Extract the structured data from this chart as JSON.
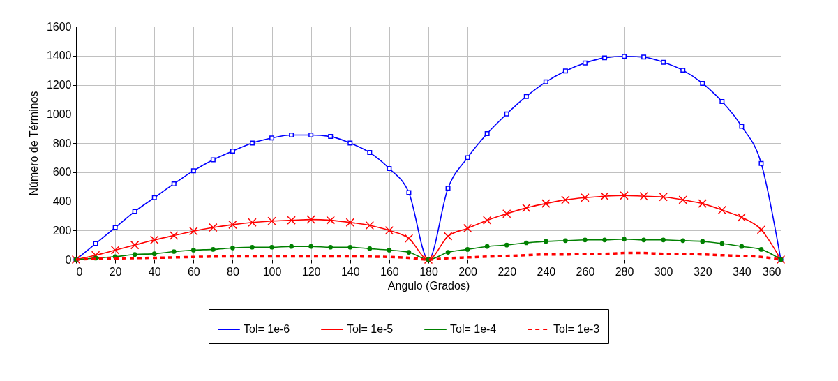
{
  "chart_data": {
    "type": "line",
    "xlabel": "Angulo (Grados)",
    "ylabel": "Número de Términos",
    "x": [
      0,
      10,
      20,
      30,
      40,
      50,
      60,
      70,
      80,
      90,
      100,
      110,
      120,
      130,
      140,
      150,
      160,
      170,
      180,
      190,
      200,
      210,
      220,
      230,
      240,
      250,
      260,
      270,
      280,
      290,
      300,
      310,
      320,
      330,
      340,
      350,
      360
    ],
    "series": [
      {
        "name": "Tol= 1e-6",
        "color": "#0000ff",
        "marker": "square",
        "line_style": "solid",
        "values": [
          0,
          110,
          220,
          330,
          425,
          520,
          610,
          685,
          745,
          800,
          835,
          855,
          855,
          845,
          800,
          735,
          625,
          460,
          0,
          490,
          700,
          865,
          1000,
          1120,
          1220,
          1295,
          1350,
          1385,
          1395,
          1390,
          1355,
          1300,
          1210,
          1085,
          915,
          660,
          0
        ]
      },
      {
        "name": "Tol= 1e-5",
        "color": "#ff0000",
        "marker": "cross",
        "line_style": "solid",
        "values": [
          0,
          30,
          65,
          100,
          135,
          165,
          195,
          220,
          240,
          255,
          265,
          270,
          275,
          270,
          255,
          235,
          200,
          145,
          0,
          160,
          215,
          270,
          315,
          355,
          385,
          410,
          425,
          435,
          440,
          435,
          430,
          410,
          385,
          340,
          290,
          205,
          0
        ]
      },
      {
        "name": "Tol= 1e-4",
        "color": "#008000",
        "marker": "circle",
        "line_style": "solid",
        "values": [
          0,
          10,
          20,
          35,
          40,
          55,
          65,
          70,
          80,
          85,
          85,
          90,
          90,
          85,
          85,
          75,
          65,
          50,
          0,
          50,
          70,
          90,
          100,
          115,
          125,
          130,
          135,
          135,
          140,
          135,
          135,
          130,
          125,
          110,
          90,
          70,
          0
        ]
      },
      {
        "name": "Tol= 1e-3",
        "color": "#ff0000",
        "marker": "none",
        "line_style": "dashed",
        "values": [
          0,
          5,
          8,
          10,
          12,
          15,
          18,
          20,
          22,
          22,
          22,
          22,
          22,
          22,
          22,
          20,
          18,
          12,
          0,
          10,
          15,
          20,
          25,
          30,
          35,
          35,
          40,
          40,
          45,
          45,
          40,
          40,
          35,
          30,
          25,
          18,
          0
        ]
      }
    ],
    "xlim": [
      0,
      360
    ],
    "xticks": [
      0,
      20,
      40,
      60,
      80,
      100,
      120,
      140,
      160,
      180,
      200,
      220,
      240,
      260,
      280,
      300,
      320,
      340,
      360
    ],
    "ylim": [
      0,
      1600
    ],
    "yticks": [
      0,
      200,
      400,
      600,
      800,
      1000,
      1200,
      1400,
      1600
    ],
    "grid": true,
    "legend": "bottom"
  }
}
